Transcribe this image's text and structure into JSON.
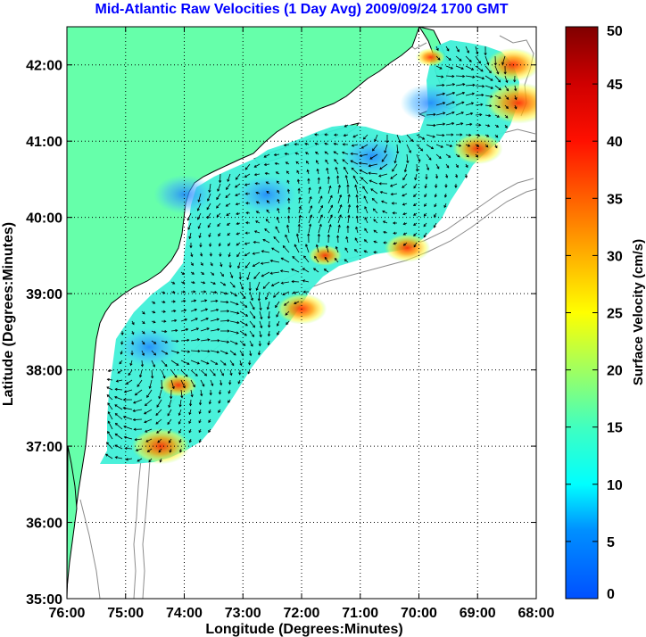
{
  "title": "Mid-Atlantic Raw Velocities (1 Day Avg) 2009/09/24 1700 GMT",
  "x_axis": {
    "label": "Longitude (Degrees:Minutes)",
    "tick_labels": [
      "76:00",
      "75:00",
      "74:00",
      "73:00",
      "72:00",
      "71:00",
      "70:00",
      "69:00",
      "68:00"
    ],
    "range_deg_west": [
      76,
      68
    ]
  },
  "y_axis": {
    "label": "Latitude (Degrees:Minutes)",
    "tick_labels": [
      "35:00",
      "36:00",
      "37:00",
      "38:00",
      "39:00",
      "40:00",
      "41:00",
      "42:00"
    ],
    "range_deg_north": [
      35,
      42.5
    ]
  },
  "colorbar": {
    "label": "Surface Velocity (cm/s)",
    "tick_labels": [
      "0",
      "5",
      "10",
      "15",
      "20",
      "25",
      "30",
      "35",
      "40",
      "45",
      "50"
    ],
    "range": [
      0,
      50
    ],
    "colormap": [
      "#0050ff",
      "#00b0ff",
      "#00ffff",
      "#40ffc0",
      "#a0ff60",
      "#ffff00",
      "#ffa000",
      "#ff3000",
      "#d00000",
      "#800000"
    ]
  },
  "colors": {
    "land": "#66ffaa",
    "coastline": "#000000",
    "bathymetry": "#8c8c8c",
    "grid": "#000000",
    "title": "#0000ff"
  },
  "grid": "dotted",
  "hotspots": [
    {
      "lon": 74.4,
      "lat": 37.0,
      "speed": 42
    },
    {
      "lon": 74.1,
      "lat": 37.8,
      "speed": 32
    },
    {
      "lon": 72.0,
      "lat": 38.8,
      "speed": 38
    },
    {
      "lon": 71.6,
      "lat": 39.5,
      "speed": 30
    },
    {
      "lon": 70.2,
      "lat": 39.6,
      "speed": 36
    },
    {
      "lon": 69.0,
      "lat": 40.9,
      "speed": 38
    },
    {
      "lon": 68.3,
      "lat": 41.5,
      "speed": 46
    },
    {
      "lon": 68.4,
      "lat": 42.0,
      "speed": 40
    },
    {
      "lon": 69.8,
      "lat": 42.1,
      "speed": 28
    }
  ],
  "calm_zones": [
    {
      "lon": 74.6,
      "lat": 38.3,
      "speed": 6
    },
    {
      "lon": 74.0,
      "lat": 40.3,
      "speed": 8
    },
    {
      "lon": 72.6,
      "lat": 40.3,
      "speed": 7
    },
    {
      "lon": 70.8,
      "lat": 40.8,
      "speed": 8
    },
    {
      "lon": 69.8,
      "lat": 41.5,
      "speed": 9
    }
  ]
}
